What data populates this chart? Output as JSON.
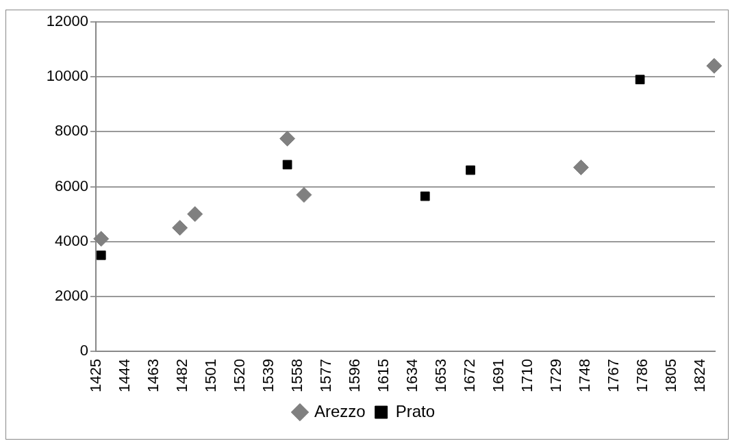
{
  "chart_data": {
    "type": "scatter",
    "legend": "bottom",
    "grid": "y",
    "xlim": [
      1424.5,
      1833.5
    ],
    "xticks": [
      1425,
      1444,
      1463,
      1482,
      1501,
      1520,
      1539,
      1558,
      1577,
      1596,
      1615,
      1634,
      1653,
      1672,
      1691,
      1710,
      1729,
      1748,
      1767,
      1786,
      1805,
      1824
    ],
    "ylim": [
      0,
      12000
    ],
    "yticks": [
      0,
      2000,
      4000,
      6000,
      8000,
      10000,
      12000
    ],
    "series": [
      {
        "name": "Arezzo",
        "color": "#808080",
        "marker": "diamond",
        "x": [
          1428,
          1480,
          1490,
          1551,
          1562,
          1745,
          1833
        ],
        "values": [
          4100,
          4500,
          5000,
          7750,
          5700,
          6700,
          10400
        ]
      },
      {
        "name": "Prato",
        "color": "#000000",
        "marker": "square",
        "x": [
          1428,
          1551,
          1642,
          1672,
          1784
        ],
        "values": [
          3500,
          6800,
          5650,
          6600,
          9900
        ]
      }
    ]
  }
}
